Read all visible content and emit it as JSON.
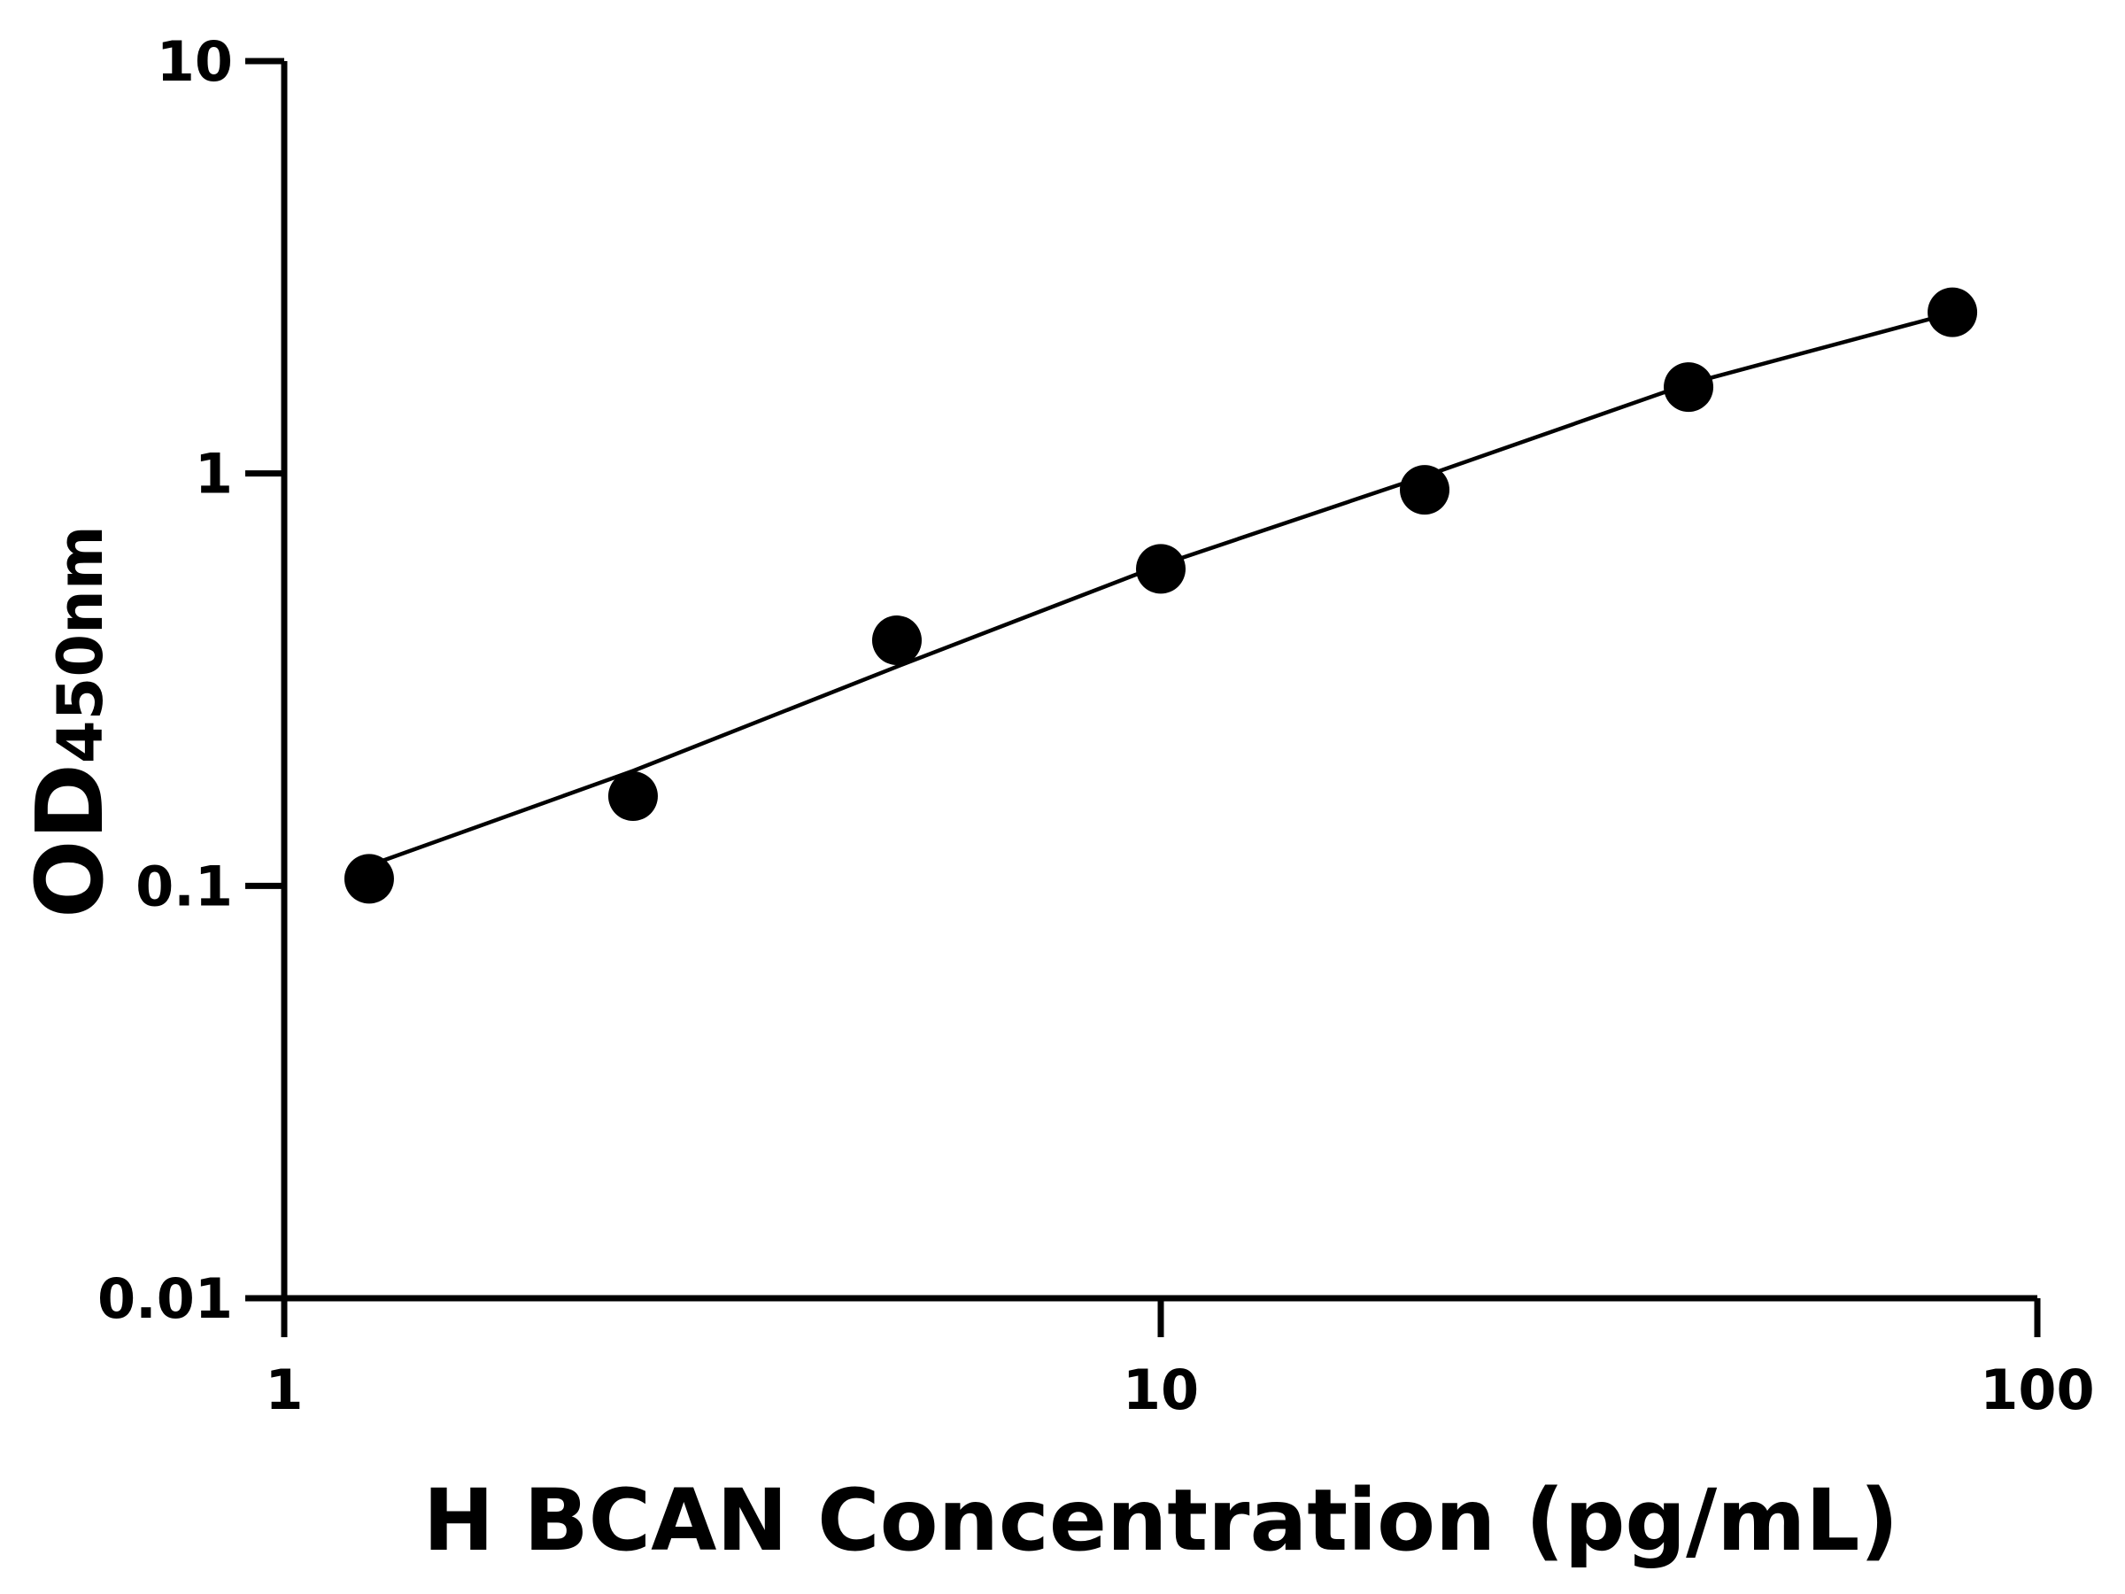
{
  "chart_data": {
    "type": "scatter",
    "title": "",
    "xlabel": "H BCAN Concentration (pg/mL)",
    "ylabel": "OD",
    "ylabel_sub": "450nm",
    "xscale": "log",
    "yscale": "log",
    "xlim": [
      1,
      100
    ],
    "ylim": [
      0.01,
      10
    ],
    "xticks": [
      1,
      10,
      100
    ],
    "xtick_labels": [
      "1",
      "10",
      "100"
    ],
    "yticks": [
      0.01,
      0.1,
      1,
      10
    ],
    "ytick_labels": [
      "0.01",
      "0.1",
      "1",
      "10"
    ],
    "grid": false,
    "legend": "none",
    "color": "#000000",
    "points": {
      "x": [
        1.25,
        2.5,
        5,
        10,
        20,
        40,
        80
      ],
      "y": [
        0.104,
        0.165,
        0.394,
        0.587,
        0.913,
        1.62,
        2.46
      ]
    },
    "fit_line": {
      "x": [
        1.25,
        2.5,
        5,
        10,
        20,
        40,
        80
      ],
      "y": [
        0.112,
        0.19,
        0.34,
        0.6,
        0.985,
        1.65,
        2.45
      ]
    }
  }
}
